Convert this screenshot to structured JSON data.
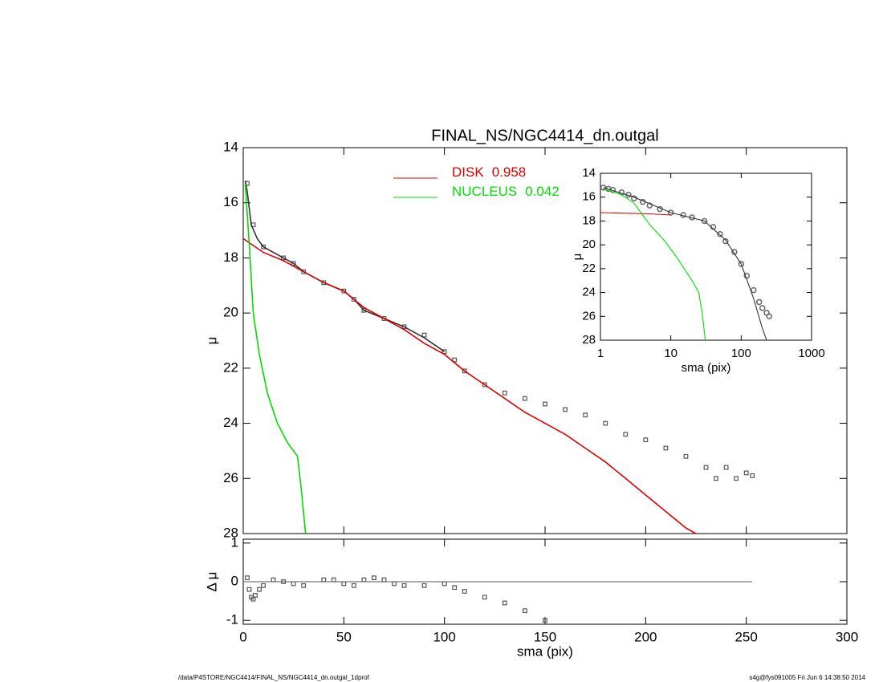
{
  "chart_data": [
    {
      "type": "scatter",
      "title": "FINAL_NS/NGC4414_dn.outgal",
      "ylabel": "μ",
      "ylim": [
        28,
        14
      ],
      "yticks": [
        14,
        16,
        18,
        20,
        22,
        24,
        26,
        28
      ],
      "series": [
        {
          "style": "squares",
          "color": "#555555",
          "x": [
            2,
            5,
            10,
            20,
            25,
            30,
            40,
            50,
            55,
            60,
            70,
            80,
            90,
            100,
            105,
            110,
            120,
            130,
            140,
            150,
            160,
            170,
            180,
            190,
            200,
            210,
            220,
            230,
            235,
            240,
            245,
            250,
            253
          ],
          "values": [
            15.3,
            16.8,
            17.6,
            18.0,
            18.2,
            18.5,
            18.9,
            19.2,
            19.5,
            19.9,
            20.2,
            20.5,
            20.8,
            21.4,
            21.7,
            22.1,
            22.6,
            22.9,
            23.1,
            23.3,
            23.5,
            23.7,
            24.0,
            24.4,
            24.6,
            24.9,
            25.2,
            25.6,
            26.0,
            25.6,
            26.0,
            25.8,
            25.9
          ]
        },
        {
          "style": "line",
          "color": "#333333",
          "x": [
            1,
            2,
            4,
            7,
            10,
            20,
            25,
            30,
            40,
            50,
            55,
            60,
            70,
            80,
            90,
            100
          ],
          "values": [
            15.2,
            15.6,
            16.8,
            17.3,
            17.6,
            18.0,
            18.2,
            18.5,
            18.9,
            19.2,
            19.5,
            19.9,
            20.2,
            20.5,
            20.9,
            21.4
          ]
        },
        {
          "style": "line",
          "name": "DISK",
          "fraction": 0.958,
          "color": "#dd0000",
          "x": [
            0,
            10,
            20,
            30,
            40,
            50,
            60,
            70,
            80,
            90,
            100,
            110,
            120,
            130,
            140,
            150,
            160,
            170,
            180,
            190,
            200,
            210,
            220,
            225
          ],
          "values": [
            17.3,
            17.8,
            18.1,
            18.5,
            18.9,
            19.2,
            19.8,
            20.2,
            20.6,
            21.1,
            21.5,
            22.1,
            22.6,
            23.1,
            23.6,
            24.0,
            24.4,
            24.9,
            25.4,
            26.0,
            26.6,
            27.2,
            27.8,
            28.0
          ]
        },
        {
          "style": "line",
          "name": "NUCLEUS",
          "fraction": 0.042,
          "color": "#00dd00",
          "x": [
            1,
            3,
            5,
            8,
            12,
            17,
            22,
            27,
            29,
            31
          ],
          "values": [
            15.3,
            17.5,
            20.0,
            21.5,
            22.9,
            24.0,
            24.7,
            25.2,
            26.5,
            28.0
          ]
        }
      ]
    },
    {
      "type": "scatter",
      "ylabel": "Δ μ",
      "xlabel": "sma (pix)",
      "xlim": [
        0,
        300
      ],
      "xticks": [
        0,
        50,
        100,
        150,
        200,
        250,
        300
      ],
      "ylim": [
        -1.1,
        1.1
      ],
      "yticks": [
        -1,
        0,
        1
      ],
      "series": [
        {
          "style": "squares",
          "color": "#555555",
          "x": [
            2,
            3,
            4,
            5,
            6,
            8,
            10,
            15,
            20,
            25,
            30,
            40,
            45,
            50,
            55,
            60,
            65,
            70,
            75,
            80,
            90,
            100,
            105,
            110,
            120,
            130,
            140,
            150
          ],
          "values": [
            0.1,
            -0.2,
            -0.4,
            -0.45,
            -0.35,
            -0.2,
            -0.1,
            0.05,
            0.0,
            -0.05,
            -0.1,
            0.05,
            0.05,
            -0.05,
            -0.1,
            0.05,
            0.1,
            0.05,
            -0.05,
            -0.1,
            -0.1,
            -0.05,
            -0.15,
            -0.25,
            -0.4,
            -0.55,
            -0.75,
            -1.0
          ]
        }
      ]
    },
    {
      "type": "scatter",
      "ylabel": "μ",
      "xlabel": "sma (pix)",
      "log_x": true,
      "xlim": [
        1,
        1000
      ],
      "xticks": [
        1,
        10,
        100,
        1000
      ],
      "ylim": [
        28,
        14
      ],
      "yticks": [
        14,
        16,
        18,
        20,
        22,
        24,
        26,
        28
      ],
      "series": [
        {
          "style": "circles",
          "color": "#666666",
          "x": [
            1.1,
            1.3,
            1.5,
            2,
            2.5,
            3,
            4,
            5,
            7,
            10,
            15,
            20,
            30,
            40,
            50,
            60,
            80,
            100,
            120,
            150,
            180,
            200,
            230,
            250
          ],
          "values": [
            15.2,
            15.3,
            15.4,
            15.6,
            15.8,
            16.1,
            16.4,
            16.7,
            17.0,
            17.3,
            17.5,
            17.7,
            18.0,
            18.5,
            19.1,
            19.7,
            20.6,
            21.6,
            22.6,
            23.8,
            24.8,
            25.3,
            25.7,
            26.0
          ]
        },
        {
          "style": "line",
          "color": "#333333",
          "x": [
            1.1,
            3,
            10,
            30,
            60,
            100,
            150,
            200,
            230
          ],
          "values": [
            15.2,
            16.0,
            17.3,
            18.0,
            19.6,
            21.6,
            24.5,
            27.0,
            28.0
          ]
        },
        {
          "style": "line",
          "color": "#dd0000",
          "x": [
            1,
            5,
            10
          ],
          "values": [
            17.3,
            17.4,
            17.5
          ]
        },
        {
          "style": "line",
          "color": "#00dd00",
          "x": [
            1.1,
            2,
            3,
            5,
            8,
            12,
            20,
            25,
            28,
            31
          ],
          "values": [
            15.3,
            15.8,
            16.5,
            18.3,
            19.6,
            21.0,
            23.0,
            24.0,
            25.8,
            28.0
          ]
        }
      ]
    }
  ],
  "footer": {
    "left": "/data/P4STORE/NGC4414/FINAL_NS/NGC4414_dn.outgal_1dprof",
    "right": "s4g@fys091005  Fri Jun  6 14:38:50 2014"
  }
}
